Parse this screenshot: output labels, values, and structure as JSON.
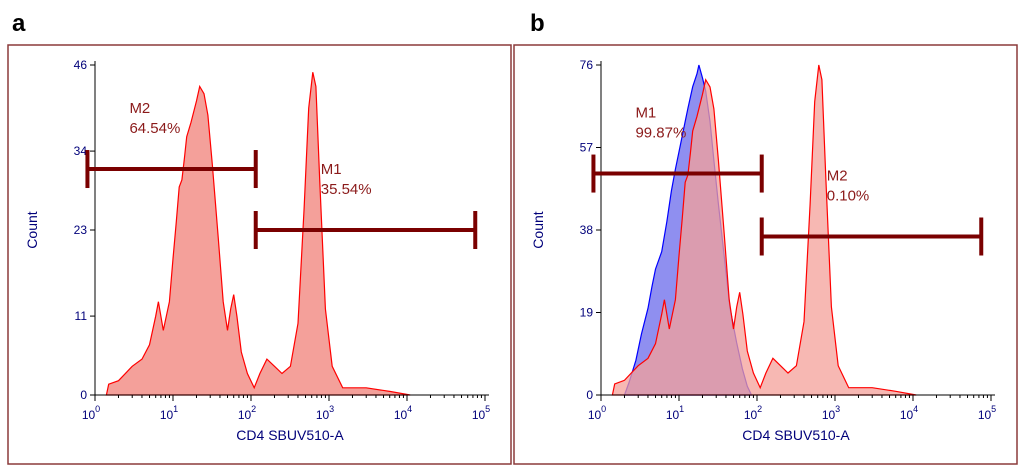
{
  "panels": [
    {
      "letter": "a"
    },
    {
      "letter": "b"
    }
  ],
  "chart_data": [
    {
      "type": "area",
      "xlabel": "CD4 SBUV510-A",
      "ylabel": "Count",
      "x_scale": "log",
      "xlim": [
        1,
        100000
      ],
      "x_ticks": [
        {
          "base": "10",
          "exp": "0"
        },
        {
          "base": "10",
          "exp": "1"
        },
        {
          "base": "10",
          "exp": "2"
        },
        {
          "base": "10",
          "exp": "3"
        },
        {
          "base": "10",
          "exp": "4"
        },
        {
          "base": "10",
          "exp": "5"
        }
      ],
      "ylim": [
        0,
        46
      ],
      "y_ticks": [
        "0",
        "11",
        "23",
        "34",
        "46"
      ],
      "colors": {
        "fill": "#f4a09a",
        "line": "#ff0000",
        "marker": "#7a0000",
        "axis_text": "#00007a",
        "label_text": "#8b1a1a",
        "frame": "#8b3a3a"
      },
      "series": [
        {
          "color": "#ff0000",
          "points": [
            [
              1.4,
              0
            ],
            [
              1.5,
              1.5
            ],
            [
              2,
              2
            ],
            [
              3,
              4
            ],
            [
              4,
              5
            ],
            [
              5,
              7
            ],
            [
              6,
              11
            ],
            [
              6.5,
              13
            ],
            [
              7.5,
              9
            ],
            [
              9,
              13
            ],
            [
              10,
              19
            ],
            [
              11,
              24
            ],
            [
              12,
              29
            ],
            [
              13,
              30
            ],
            [
              14,
              33
            ],
            [
              15,
              36
            ],
            [
              17,
              38
            ],
            [
              20,
              41
            ],
            [
              22,
              43
            ],
            [
              25,
              42
            ],
            [
              28,
              39
            ],
            [
              32,
              32
            ],
            [
              38,
              22
            ],
            [
              44,
              13
            ],
            [
              50,
              9
            ],
            [
              55,
              12
            ],
            [
              60,
              14
            ],
            [
              66,
              11
            ],
            [
              75,
              6
            ],
            [
              90,
              3
            ],
            [
              110,
              1
            ],
            [
              130,
              3
            ],
            [
              160,
              5
            ],
            [
              200,
              4
            ],
            [
              250,
              3
            ],
            [
              320,
              4
            ],
            [
              400,
              10
            ],
            [
              480,
              26
            ],
            [
              550,
              40
            ],
            [
              620,
              45
            ],
            [
              680,
              43
            ],
            [
              760,
              30
            ],
            [
              900,
              12
            ],
            [
              1100,
              4
            ],
            [
              1500,
              1
            ],
            [
              3000,
              1
            ],
            [
              6000,
              0.5
            ],
            [
              11000,
              0
            ]
          ]
        }
      ],
      "markers": [
        {
          "name": "M2",
          "percent": "64.54%",
          "x_range": [
            0.8,
            115
          ],
          "y": 31.5
        },
        {
          "name": "M1",
          "percent": "35.54%",
          "x_range": [
            115,
            75000
          ],
          "y": 23
        }
      ]
    },
    {
      "type": "area",
      "xlabel": "CD4 SBUV510-A",
      "ylabel": "Count",
      "x_scale": "log",
      "xlim": [
        1,
        100000
      ],
      "x_ticks": [
        {
          "base": "10",
          "exp": "0"
        },
        {
          "base": "10",
          "exp": "1"
        },
        {
          "base": "10",
          "exp": "2"
        },
        {
          "base": "10",
          "exp": "3"
        },
        {
          "base": "10",
          "exp": "4"
        },
        {
          "base": "10",
          "exp": "5"
        }
      ],
      "ylim": [
        0,
        76
      ],
      "y_ticks": [
        "0",
        "19",
        "38",
        "57",
        "76"
      ],
      "colors": {
        "fill": "#f4a09a",
        "line": "#ff0000",
        "fill2": "#8f8ff0",
        "line2": "#0000ff",
        "overlap": "#b0508a",
        "marker": "#7a0000",
        "axis_text": "#00007a",
        "label_text": "#8b1a1a",
        "frame": "#8b3a3a"
      },
      "series": [
        {
          "color": "#0000ff",
          "points": [
            [
              2,
              0
            ],
            [
              2.3,
              3
            ],
            [
              2.8,
              8
            ],
            [
              3.3,
              14
            ],
            [
              4,
              20
            ],
            [
              4.5,
              25
            ],
            [
              5,
              29
            ],
            [
              6,
              33
            ],
            [
              7,
              40
            ],
            [
              8,
              47
            ],
            [
              9,
              52
            ],
            [
              10,
              56
            ],
            [
              12,
              63
            ],
            [
              13,
              66
            ],
            [
              15,
              71
            ],
            [
              17,
              74
            ],
            [
              18,
              76
            ],
            [
              20,
              73
            ],
            [
              22,
              70
            ],
            [
              25,
              63
            ],
            [
              28,
              54
            ],
            [
              32,
              44
            ],
            [
              38,
              32
            ],
            [
              45,
              20
            ],
            [
              55,
              12
            ],
            [
              65,
              6
            ],
            [
              75,
              2
            ],
            [
              85,
              0
            ]
          ]
        },
        {
          "color": "#ff0000",
          "points": [
            [
              1.4,
              0
            ],
            [
              1.5,
              1.5
            ],
            [
              2,
              2
            ],
            [
              3,
              4
            ],
            [
              4,
              5
            ],
            [
              5,
              7
            ],
            [
              6,
              11
            ],
            [
              6.5,
              13
            ],
            [
              7.5,
              9
            ],
            [
              9,
              13
            ],
            [
              10,
              19
            ],
            [
              11,
              24
            ],
            [
              12,
              29
            ],
            [
              13,
              30
            ],
            [
              14,
              33
            ],
            [
              15,
              36
            ],
            [
              17,
              38
            ],
            [
              20,
              41
            ],
            [
              22,
              43
            ],
            [
              25,
              42
            ],
            [
              28,
              39
            ],
            [
              32,
              32
            ],
            [
              38,
              22
            ],
            [
              44,
              13
            ],
            [
              50,
              9
            ],
            [
              55,
              12
            ],
            [
              60,
              14
            ],
            [
              66,
              11
            ],
            [
              75,
              6
            ],
            [
              90,
              3
            ],
            [
              110,
              1
            ],
            [
              130,
              3
            ],
            [
              160,
              5
            ],
            [
              200,
              4
            ],
            [
              250,
              3
            ],
            [
              320,
              4
            ],
            [
              400,
              10
            ],
            [
              480,
              26
            ],
            [
              550,
              40
            ],
            [
              620,
              45
            ],
            [
              680,
              43
            ],
            [
              760,
              30
            ],
            [
              900,
              12
            ],
            [
              1100,
              4
            ],
            [
              1500,
              1
            ],
            [
              3000,
              1
            ],
            [
              6000,
              0.5
            ],
            [
              11000,
              0
            ]
          ],
          "scale_to_max": 76
        }
      ],
      "markers": [
        {
          "name": "M1",
          "percent": "99.87%",
          "x_range": [
            0.8,
            115
          ],
          "y": 51
        },
        {
          "name": "M2",
          "percent": "0.10%",
          "x_range": [
            115,
            75000
          ],
          "y": 36.5
        }
      ]
    }
  ]
}
